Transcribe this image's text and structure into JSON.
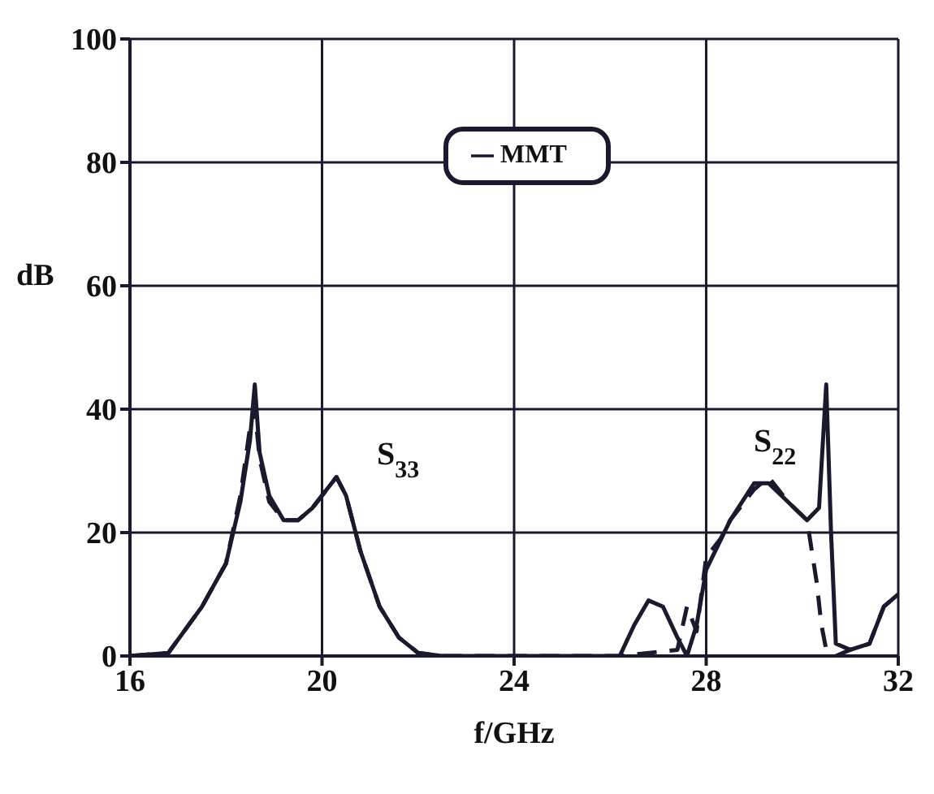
{
  "chart_data": {
    "type": "line",
    "xlabel": "f/GHz",
    "ylabel": "dB",
    "xlim": [
      16,
      32
    ],
    "xticks": [
      16,
      20,
      24,
      28,
      32
    ],
    "ylim": [
      0,
      100
    ],
    "yticks": [
      0,
      20,
      40,
      60,
      80,
      100
    ],
    "grid": true,
    "legend": "top",
    "marker": "none",
    "series": [
      {
        "name": "MMT",
        "color": "#1a1a2e",
        "line_style": "solid",
        "x": [
          16,
          16.8,
          17.5,
          18,
          18.3,
          18.5,
          18.6,
          18.7,
          18.9,
          19.2,
          19.5,
          19.8,
          20.1,
          20.3,
          20.5,
          20.8,
          21.2,
          21.6,
          22,
          22.5,
          26.2,
          26.5,
          26.8,
          27.1,
          27.4,
          27.6,
          27.8,
          28,
          28.5,
          29,
          29.3,
          29.7,
          30.1,
          30.35,
          30.5,
          30.6,
          30.7,
          31,
          31.4,
          31.7,
          32
        ],
        "values": [
          0,
          0.5,
          8,
          15,
          25,
          35,
          44,
          33,
          26,
          22,
          22,
          24,
          27,
          29,
          26,
          17,
          8,
          3,
          0.5,
          0,
          0,
          5,
          9,
          8,
          3,
          0,
          5,
          14,
          22,
          28,
          28,
          25,
          22,
          24,
          44,
          20,
          2,
          1,
          2,
          8,
          10
        ]
      },
      {
        "color": "#1a1a2e",
        "line_style": "dashed",
        "x": [
          16,
          16.8,
          17.5,
          18,
          18.3,
          18.5,
          18.6,
          18.7,
          18.9,
          19.2,
          19.5,
          19.8,
          20.1,
          20.3,
          20.5,
          20.8,
          21.2,
          21.6,
          22,
          22.5,
          26.2,
          27.4,
          27.6,
          27.8,
          28,
          28.3,
          28.5,
          29,
          29.3,
          29.7,
          30.1,
          30.3,
          30.4,
          30.5,
          30.7,
          31,
          31.4,
          31.7,
          32
        ],
        "values": [
          0,
          0.5,
          8,
          15,
          26,
          37,
          40,
          32,
          25,
          22,
          22,
          24,
          27,
          29,
          26,
          17,
          8,
          3,
          0.5,
          0,
          0,
          1,
          8,
          4,
          16,
          19,
          22,
          27,
          29,
          25,
          22,
          12,
          5,
          1,
          0,
          1,
          2,
          8,
          10
        ]
      }
    ],
    "annotations": [
      "S$_{33}$",
      "S$_{22}$"
    ]
  }
}
